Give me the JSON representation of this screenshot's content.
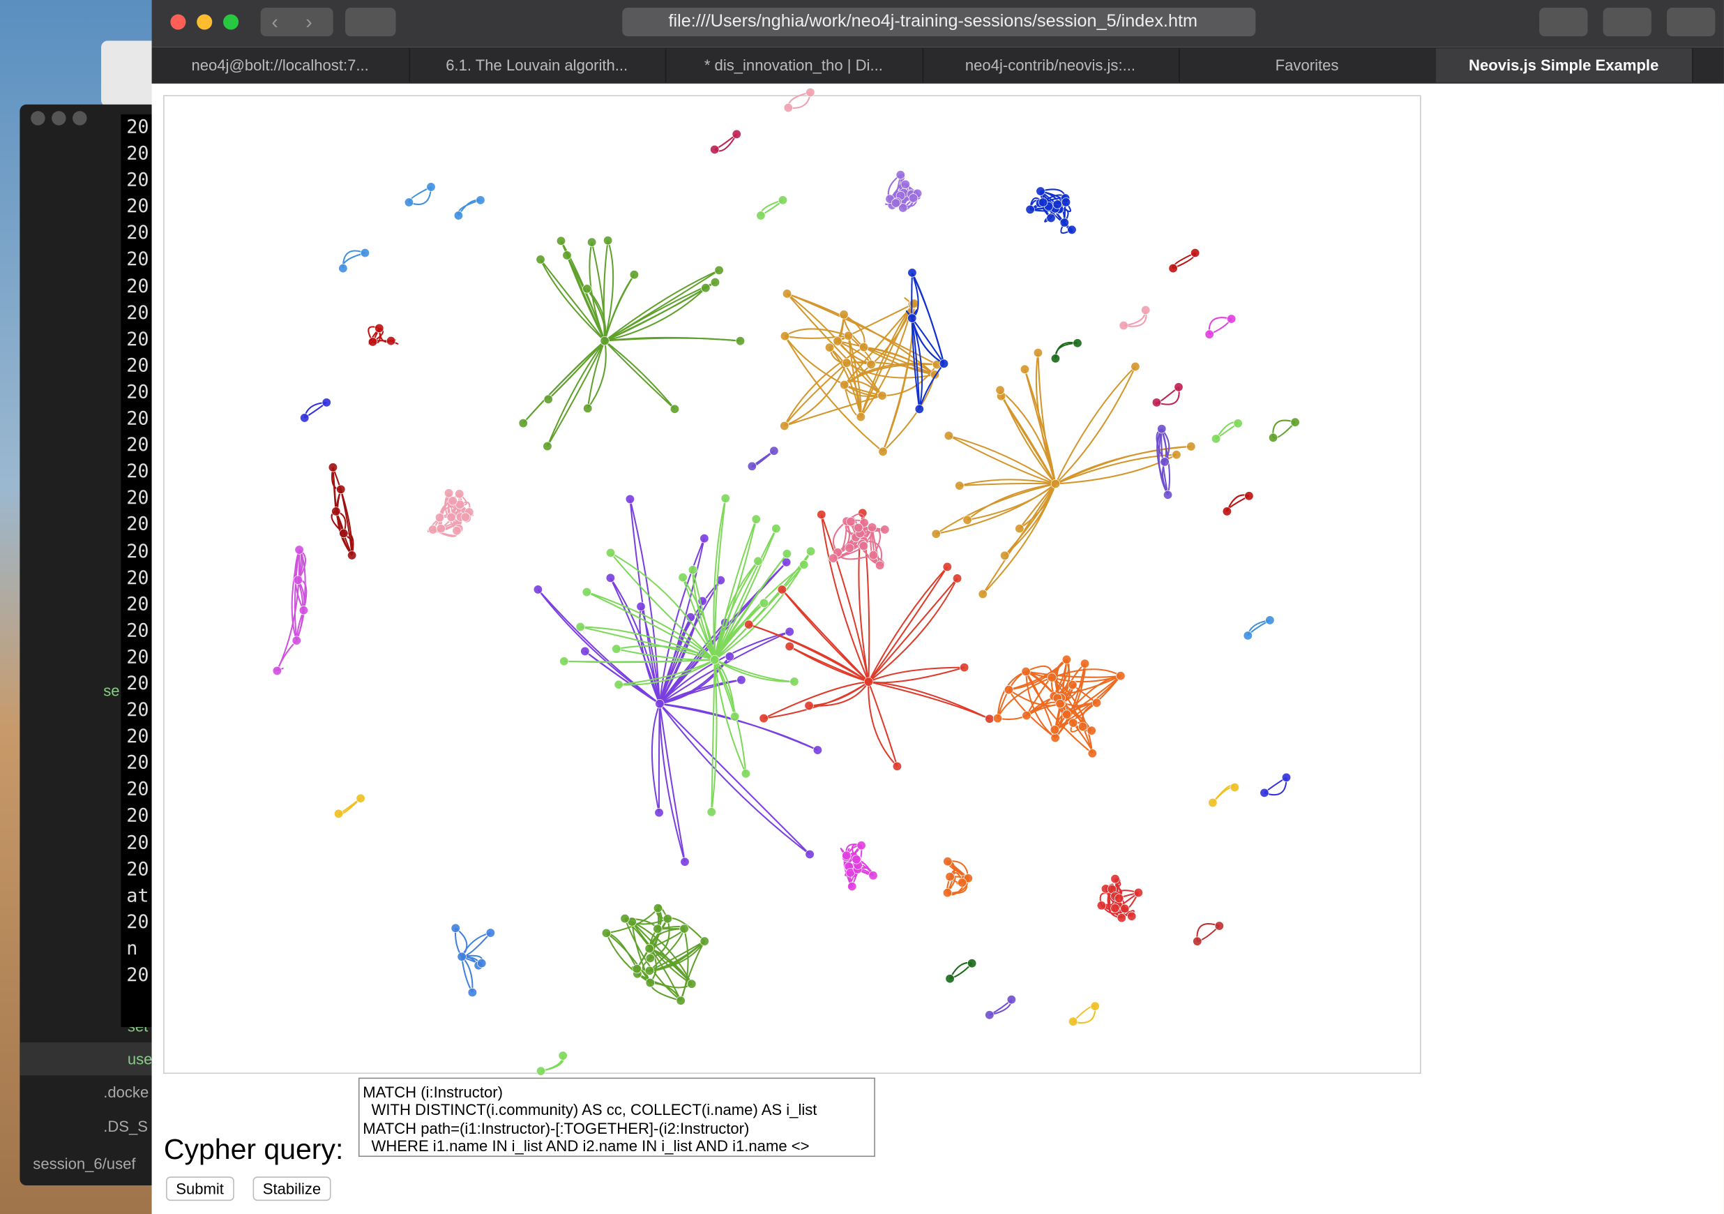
{
  "browser": {
    "url": "file:///Users/nghia/work/neo4j-training-sessions/session_5/index.htm",
    "tabs": [
      "neo4j@bolt://localhost:7...",
      "6.1. The Louvain algorith...",
      "* dis_innovation_tho | Di...",
      "neo4j-contrib/neovis.js:...",
      "Favorites",
      "Neovis.js Simple Example"
    ]
  },
  "terminal": {
    "lines": [
      "20",
      "20",
      "20",
      "20",
      "20",
      "20",
      "20",
      "20",
      "20",
      "20",
      "20",
      "20",
      "20",
      "20",
      "20",
      "20",
      "20",
      "20",
      "20",
      "20",
      "20",
      "20",
      "20",
      "20",
      "20",
      "20",
      "20",
      "20",
      "20",
      "at",
      "20",
      "n",
      "20"
    ]
  },
  "sidebar": {
    "items": [
      "se",
      "set",
      "use",
      ".docke",
      ".DS_S"
    ],
    "status": "session_6/usef"
  },
  "form": {
    "label": "Cypher query:",
    "query": "MATCH (i:Instructor)\n  WITH DISTINCT(i.community) AS cc, COLLECT(i.name) AS i_list\nMATCH path=(i1:Instructor)-[:TOGETHER]-(i2:Instructor)\n  WHERE i1.name IN i_list AND i2.name IN i_list AND i1.name <>",
    "buttons": [
      "Submit",
      "Stabilize"
    ]
  }
}
